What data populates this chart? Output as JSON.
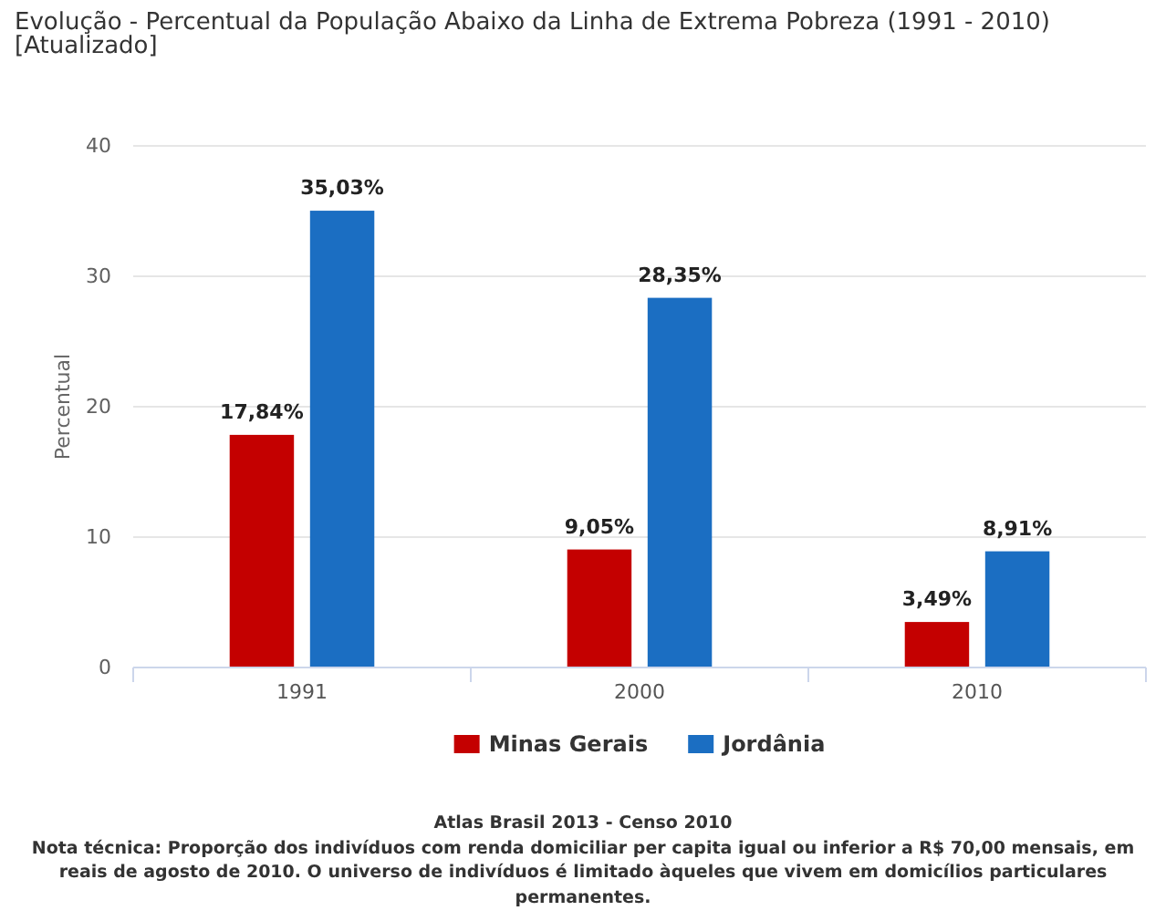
{
  "chart_data": {
    "type": "bar",
    "title": "Evolução - Percentual da População Abaixo da Linha de Extrema Pobreza (1991 - 2010) [Atualizado]",
    "ylabel": "Percentual",
    "categories": [
      "1991",
      "2000",
      "2010"
    ],
    "series": [
      {
        "name": "Minas Gerais",
        "color": "#c40000",
        "values": [
          17.84,
          9.05,
          3.49
        ],
        "value_labels": [
          "17,84%",
          "9,05%",
          "3,49%"
        ]
      },
      {
        "name": "Jordânia",
        "color": "#1b6ec2",
        "values": [
          35.03,
          28.35,
          8.91
        ],
        "value_labels": [
          "35,03%",
          "28,35%",
          "8,91%"
        ]
      }
    ],
    "ylim": [
      0,
      40
    ],
    "yticks": [
      0,
      10,
      20,
      30,
      40
    ],
    "grid": true,
    "legend": "bottom",
    "annotations": [
      "Atlas Brasil 2013 - Censo 2010",
      "Nota técnica: Proporção dos indivíduos com renda domiciliar per capita igual ou inferior a R$ 70,00 mensais, em reais de agosto de 2010. O universo de indivíduos é limitado àqueles que vivem em domicílios particulares permanentes."
    ]
  }
}
